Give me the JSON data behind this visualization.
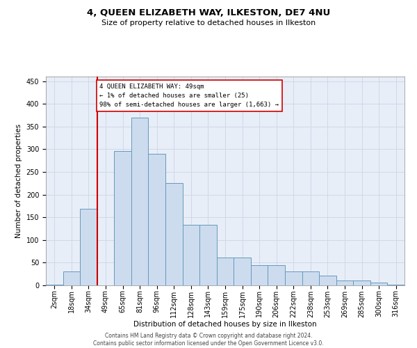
{
  "title": "4, QUEEN ELIZABETH WAY, ILKESTON, DE7 4NU",
  "subtitle": "Size of property relative to detached houses in Ilkeston",
  "xlabel": "Distribution of detached houses by size in Ilkeston",
  "ylabel": "Number of detached properties",
  "footer_line1": "Contains HM Land Registry data © Crown copyright and database right 2024.",
  "footer_line2": "Contains public sector information licensed under the Open Government Licence v3.0.",
  "bar_color": "#ccdcee",
  "bar_edge_color": "#6699bb",
  "vline_color": "#cc0000",
  "annotation_text": "4 QUEEN ELIZABETH WAY: 49sqm\n← 1% of detached houses are smaller (25)\n98% of semi-detached houses are larger (1,663) →",
  "annotation_box_color": "#ffffff",
  "annotation_box_edge_color": "#cc0000",
  "categories": [
    "2sqm",
    "18sqm",
    "34sqm",
    "49sqm",
    "65sqm",
    "81sqm",
    "96sqm",
    "112sqm",
    "128sqm",
    "143sqm",
    "159sqm",
    "175sqm",
    "190sqm",
    "206sqm",
    "222sqm",
    "238sqm",
    "253sqm",
    "269sqm",
    "285sqm",
    "300sqm",
    "316sqm"
  ],
  "values": [
    1,
    30,
    168,
    0,
    296,
    370,
    290,
    226,
    134,
    134,
    62,
    62,
    44,
    44,
    31,
    31,
    22,
    11,
    11,
    6,
    2
  ],
  "vline_index": 3,
  "ylim": [
    0,
    460
  ],
  "yticks": [
    0,
    50,
    100,
    150,
    200,
    250,
    300,
    350,
    400,
    450
  ],
  "grid_color": "#d0d8e8",
  "bg_color": "#e8eef8",
  "title_fontsize": 9.5,
  "subtitle_fontsize": 8,
  "axis_label_fontsize": 7.5,
  "tick_fontsize": 7,
  "annotation_fontsize": 6.5,
  "footer_fontsize": 5.5
}
